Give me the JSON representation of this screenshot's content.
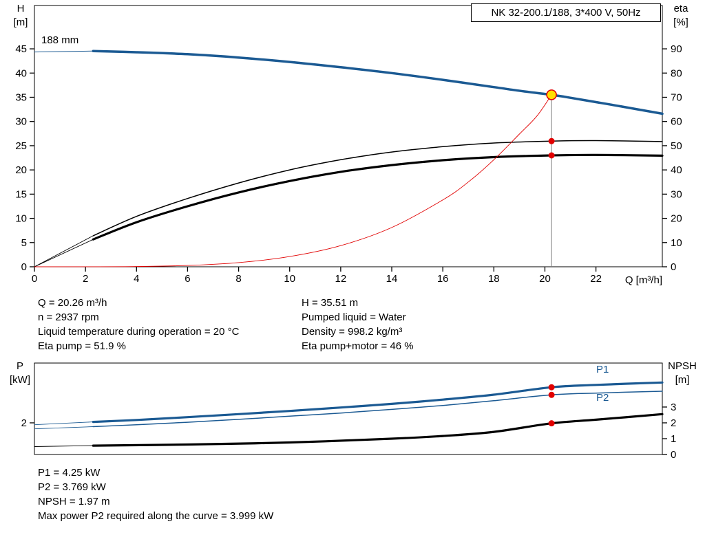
{
  "info_top": {
    "col1": [
      "Q = 20.26 m³/h",
      "n = 2937 rpm",
      "Liquid temperature during operation = 20 °C",
      "Eta pump = 51.9 %"
    ],
    "col2": [
      "H = 35.51 m",
      "Pumped liquid = Water",
      "Density = 998.2 kg/m³",
      "Eta pump+motor = 46 %"
    ]
  },
  "info_bottom": [
    "P1 = 4.25 kW",
    "P2 = 3.769 kW",
    "NPSH = 1.97 m",
    "Max power P2 required along the curve = 3.999 kW"
  ],
  "colors": {
    "curve_blue": "#1b5a93",
    "curve_black": "#000000",
    "curve_red": "#e10000",
    "duty_yellow": "#ffdf00",
    "marker_red": "#e10000",
    "vline_gray": "#7a7a7a"
  },
  "chart_data": [
    {
      "type": "line",
      "title": "NK 32-200.1/188, 3*400 V, 50Hz",
      "annotation": "188 mm",
      "x": {
        "label": "Q [m³/h]",
        "min": 0,
        "max": 24.6,
        "ticks": [
          0,
          2,
          4,
          6,
          8,
          10,
          12,
          14,
          16,
          18,
          20,
          22
        ]
      },
      "y_left": {
        "name": "H",
        "unit": "[m]",
        "min": 0,
        "max": 53.95,
        "ticks": [
          0,
          5,
          10,
          15,
          20,
          25,
          30,
          35,
          40,
          45
        ]
      },
      "y_right": {
        "name": "eta",
        "unit": "[%]",
        "min": 0,
        "max": 107.9,
        "ticks": [
          0,
          10,
          20,
          30,
          40,
          50,
          60,
          70,
          80,
          90
        ]
      },
      "vline": {
        "x": 20.26,
        "y0": 0,
        "y1": 35.51,
        "color": "#7a7a7a"
      },
      "series": [
        {
          "name": "head-lead",
          "axis": "left",
          "color": "#1b5a93",
          "width": 1,
          "points": [
            [
              0,
              44.35
            ],
            [
              2.3,
              44.55
            ]
          ]
        },
        {
          "name": "head-curve",
          "axis": "left",
          "color": "#1b5a93",
          "width": 3.5,
          "points": [
            [
              2.3,
              44.55
            ],
            [
              4,
              44.3
            ],
            [
              6,
              43.9
            ],
            [
              8,
              43.2
            ],
            [
              10,
              42.3
            ],
            [
              12,
              41.2
            ],
            [
              14,
              40.0
            ],
            [
              16,
              38.6
            ],
            [
              18,
              37.1
            ],
            [
              19.2,
              36.2
            ],
            [
              20.26,
              35.51
            ],
            [
              21,
              34.9
            ],
            [
              22,
              34.0
            ],
            [
              23,
              33.1
            ],
            [
              24.6,
              31.6
            ]
          ]
        },
        {
          "name": "eta-pump-lead",
          "axis": "right",
          "color": "#000000",
          "width": 0.9,
          "points": [
            [
              0,
              0
            ],
            [
              2.3,
              12.8
            ]
          ]
        },
        {
          "name": "eta-pump-curve",
          "axis": "right",
          "color": "#000000",
          "width": 1.5,
          "points": [
            [
              2.3,
              12.8
            ],
            [
              4,
              20.8
            ],
            [
              6,
              28.2
            ],
            [
              8,
              34.6
            ],
            [
              10,
              40.0
            ],
            [
              12,
              44.2
            ],
            [
              14,
              47.4
            ],
            [
              16,
              49.6
            ],
            [
              18,
              51.1
            ],
            [
              20.26,
              51.9
            ],
            [
              22,
              52.1
            ],
            [
              24.6,
              51.7
            ]
          ]
        },
        {
          "name": "eta-motor-lead",
          "axis": "right",
          "color": "#000000",
          "width": 0.9,
          "points": [
            [
              0,
              0
            ],
            [
              2.3,
              11.3
            ]
          ]
        },
        {
          "name": "eta-motor-curve",
          "axis": "right",
          "color": "#000000",
          "width": 3.2,
          "points": [
            [
              2.3,
              11.3
            ],
            [
              4,
              18.4
            ],
            [
              6,
              25.0
            ],
            [
              8,
              30.7
            ],
            [
              10,
              35.4
            ],
            [
              12,
              39.2
            ],
            [
              14,
              42.0
            ],
            [
              16,
              44.0
            ],
            [
              18,
              45.3
            ],
            [
              20.26,
              46.0
            ],
            [
              22,
              46.2
            ],
            [
              24.6,
              45.9
            ]
          ]
        },
        {
          "name": "system-curve",
          "axis": "left",
          "color": "#e10000",
          "width": 0.9,
          "points": [
            [
              0,
              0
            ],
            [
              2,
              0.01
            ],
            [
              4,
              0.05
            ],
            [
              6,
              0.27
            ],
            [
              8,
              0.86
            ],
            [
              10,
              2.11
            ],
            [
              12,
              4.37
            ],
            [
              14,
              8.1
            ],
            [
              16,
              13.8
            ],
            [
              17,
              17.5
            ],
            [
              18,
              22.1
            ],
            [
              19,
              27.4
            ],
            [
              19.7,
              31.2
            ],
            [
              20.26,
              35.51
            ]
          ]
        }
      ],
      "markers": [
        {
          "name": "eta-pump-duty",
          "x": 20.26,
          "y": 51.9,
          "axis": "right",
          "r": 4.5,
          "fill": "#e10000"
        },
        {
          "name": "eta-motor-duty",
          "x": 20.26,
          "y": 46.0,
          "axis": "right",
          "r": 4.5,
          "fill": "#e10000"
        },
        {
          "name": "duty-point",
          "x": 20.26,
          "y": 35.51,
          "axis": "left",
          "r": 7,
          "fill": "#ffdf00",
          "stroke": "#e10000",
          "sw": 1.6
        }
      ]
    },
    {
      "type": "line",
      "legend": [
        "P1",
        "P2"
      ],
      "x": {
        "label": "",
        "min": 0,
        "max": 24.6,
        "ticks": []
      },
      "y_left": {
        "name": "P",
        "unit": "[kW]",
        "min": 0,
        "max": 5.78,
        "ticks": [
          2
        ]
      },
      "y_right": {
        "name": "NPSH",
        "unit": "[m]",
        "min": 0,
        "max": 5.78,
        "ticks": [
          0,
          1,
          2,
          3
        ]
      },
      "series": [
        {
          "name": "p1-lead",
          "axis": "left",
          "color": "#1b5a93",
          "width": 0.9,
          "points": [
            [
              0,
              1.88
            ],
            [
              2.3,
              2.06
            ]
          ]
        },
        {
          "name": "p1-curve",
          "axis": "left",
          "color": "#1b5a93",
          "width": 3.2,
          "points": [
            [
              2.3,
              2.06
            ],
            [
              4,
              2.18
            ],
            [
              6,
              2.36
            ],
            [
              8,
              2.55
            ],
            [
              10,
              2.75
            ],
            [
              12,
              2.97
            ],
            [
              14,
              3.2
            ],
            [
              16,
              3.47
            ],
            [
              18,
              3.78
            ],
            [
              20.26,
              4.25
            ],
            [
              22,
              4.4
            ],
            [
              24.6,
              4.55
            ]
          ]
        },
        {
          "name": "p2-lead",
          "axis": "left",
          "color": "#1b5a93",
          "width": 0.9,
          "points": [
            [
              0,
              1.62
            ],
            [
              2.3,
              1.76
            ]
          ]
        },
        {
          "name": "p2-curve",
          "axis": "left",
          "color": "#1b5a93",
          "width": 1.5,
          "points": [
            [
              2.3,
              1.76
            ],
            [
              4,
              1.88
            ],
            [
              6,
              2.04
            ],
            [
              8,
              2.22
            ],
            [
              10,
              2.42
            ],
            [
              12,
              2.62
            ],
            [
              14,
              2.85
            ],
            [
              16,
              3.1
            ],
            [
              18,
              3.4
            ],
            [
              20.26,
              3.769
            ],
            [
              22,
              3.88
            ],
            [
              24.6,
              4.0
            ]
          ]
        },
        {
          "name": "npsh-lead",
          "axis": "right",
          "color": "#000000",
          "width": 0.9,
          "points": [
            [
              0,
              0.5
            ],
            [
              2.3,
              0.56
            ]
          ]
        },
        {
          "name": "npsh-curve",
          "axis": "right",
          "color": "#000000",
          "width": 3.2,
          "points": [
            [
              2.3,
              0.56
            ],
            [
              6,
              0.63
            ],
            [
              10,
              0.76
            ],
            [
              14,
              1.0
            ],
            [
              16,
              1.17
            ],
            [
              18,
              1.43
            ],
            [
              20.26,
              1.97
            ],
            [
              22,
              2.2
            ],
            [
              24.6,
              2.55
            ]
          ]
        }
      ],
      "markers": [
        {
          "name": "p1-duty",
          "x": 20.26,
          "y": 4.25,
          "axis": "left",
          "r": 4.5,
          "fill": "#e10000"
        },
        {
          "name": "p2-duty",
          "x": 20.26,
          "y": 3.769,
          "axis": "left",
          "r": 4.5,
          "fill": "#e10000"
        },
        {
          "name": "npsh-duty",
          "x": 20.26,
          "y": 1.97,
          "axis": "right",
          "r": 4.5,
          "fill": "#e10000"
        }
      ]
    }
  ]
}
